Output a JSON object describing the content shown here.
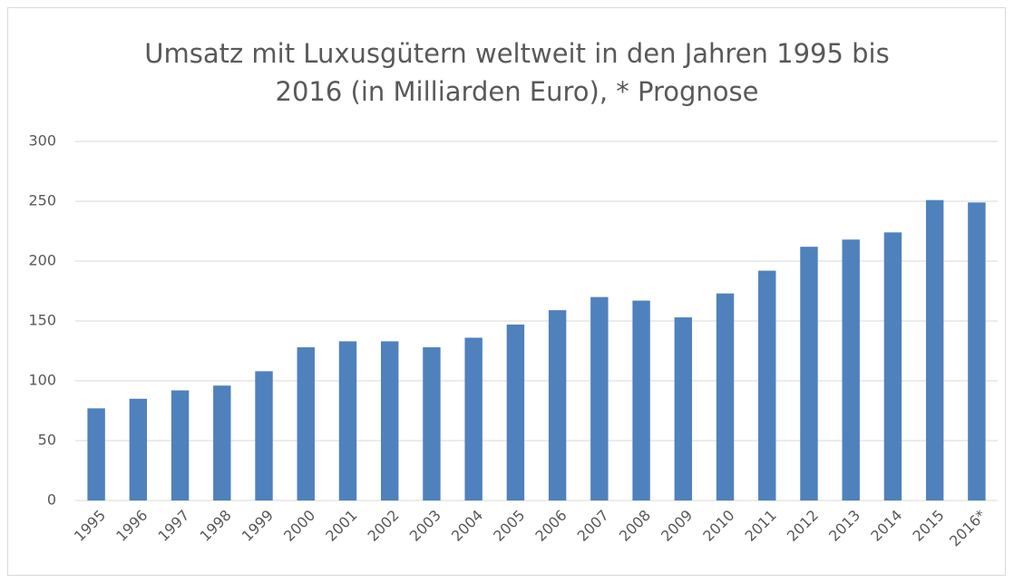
{
  "chart_data": {
    "type": "bar",
    "title": "Umsatz mit Luxusgütern weltweit in den Jahren 1995 bis 2016 (in Milliarden Euro), * Prognose",
    "categories": [
      "1995",
      "1996",
      "1997",
      "1998",
      "1999",
      "2000",
      "2001",
      "2002",
      "2003",
      "2004",
      "2005",
      "2006",
      "2007",
      "2008",
      "2009",
      "2010",
      "2011",
      "2012",
      "2013",
      "2014",
      "2015",
      "2016*"
    ],
    "values": [
      77,
      85,
      92,
      96,
      108,
      128,
      133,
      133,
      128,
      136,
      147,
      159,
      170,
      167,
      153,
      173,
      192,
      212,
      218,
      224,
      251,
      249
    ],
    "color": "#4f81bd",
    "ylim": [
      0,
      300
    ],
    "yticks": [
      0,
      50,
      100,
      150,
      200,
      250,
      300
    ],
    "grid": true
  }
}
